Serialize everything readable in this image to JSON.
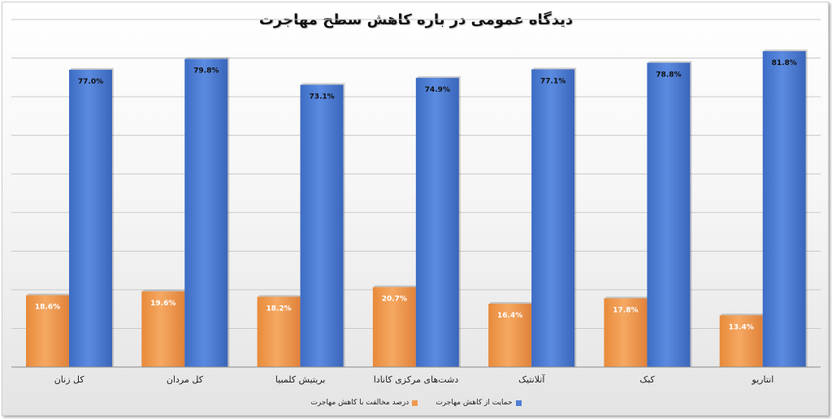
{
  "chart_data": {
    "type": "bar",
    "title": "دیدگاه عمومی در باره کاهش سطح مهاجرت",
    "categories": [
      "کل زنان",
      "کل مردان",
      "بریتیش کلمبیا",
      "دشت‌های مرکزی کانادا",
      "آتلانتیک",
      "کبک",
      "انتاریو"
    ],
    "series": [
      {
        "name": "درصد مخالفت با کاهش مهاجرت",
        "color": "#ed9a4e",
        "values": [
          18.6,
          19.6,
          18.2,
          20.7,
          16.4,
          17.8,
          13.4
        ],
        "labels": [
          "18.6%",
          "19.6%",
          "18.2%",
          "20.7%",
          "16.4%",
          "17.8%",
          "13.4%"
        ]
      },
      {
        "name": "حمایت از کاهش مهاجرت",
        "color": "#4f7fd6",
        "values": [
          77.0,
          79.8,
          73.1,
          74.9,
          77.1,
          78.8,
          81.8
        ],
        "labels": [
          "77.0%",
          "79.8%",
          "73.1%",
          "74.9%",
          "77.1%",
          "78.8%",
          "81.8%"
        ]
      }
    ],
    "ylim": [
      0,
      90
    ],
    "grid": true,
    "legend_position": "bottom"
  }
}
